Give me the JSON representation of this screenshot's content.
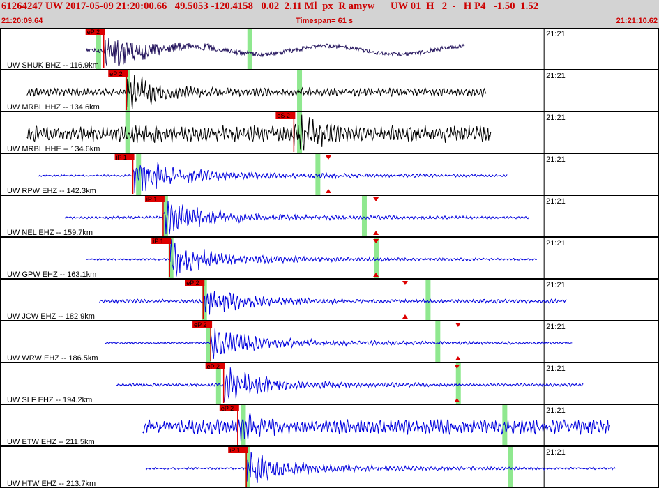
{
  "header": {
    "event_id": "61264247",
    "network": "UW",
    "datetime": "2017-05-09 21:20:00.66",
    "lat": "49.5053",
    "lon": "-120.4158",
    "depth": "0.02",
    "magnitude": "2.11 Ml",
    "magtype": "px",
    "review": "R",
    "author": "amyw",
    "version": "UW 01",
    "quality": "H",
    "num": "2",
    "dash": "-",
    "phase_code": "H P4",
    "v1": "-1.50",
    "v2": "1.52",
    "start_time": "21:20:09.64",
    "timespan_label": "Timespan=  61 s",
    "end_time": "21:21:10.62"
  },
  "colors": {
    "header_bg": "#d3d3d3",
    "header_text": "#cc0000",
    "pick_red": "#dd0000",
    "window_green": "#8fe88f",
    "trace_dark": "#20105a",
    "trace_black": "#000000",
    "trace_blue": "#0000dd"
  },
  "traces": [
    {
      "label": "UW SHUK BHZ -- 116.9km",
      "color": "#20105a",
      "pick": "eP 2",
      "minute_mark": "21:21",
      "start_t": 8.0,
      "pick_t": 9.6,
      "end_t": 43.0,
      "green_t": [
        8.9,
        22.9
      ],
      "extra_marks": [],
      "amp": 0.9,
      "noise": 0.12,
      "lowfreq": true
    },
    {
      "label": "UW MRBL HHZ -- 134.6km",
      "color": "#000000",
      "pick": "eP 2",
      "minute_mark": "21:21",
      "start_t": 2.5,
      "pick_t": 11.7,
      "end_t": 45.0,
      "green_t": [
        11.6,
        27.5
      ],
      "extra_marks": [],
      "amp": 0.9,
      "noise": 0.22,
      "lowfreq": false
    },
    {
      "label": "UW MRBL HHE -- 134.6km",
      "color": "#000000",
      "pick": "eS 2",
      "minute_mark": "21:21",
      "start_t": 2.5,
      "pick_t": 27.2,
      "end_t": 45.5,
      "green_t": [
        11.6,
        27.5
      ],
      "extra_marks": [],
      "amp": 1.0,
      "noise": 0.45,
      "lowfreq": false
    },
    {
      "label": "UW RPW EHZ -- 142.3km",
      "color": "#0000dd",
      "pick": "iP 1",
      "minute_mark": "21:21",
      "start_t": 3.5,
      "pick_t": 12.3,
      "end_t": 47.0,
      "green_t": [
        12.6,
        29.2
      ],
      "extra_marks": [
        30.4
      ],
      "amp": 1.0,
      "noise": 0.05,
      "lowfreq": false
    },
    {
      "label": "UW NEL EHZ -- 159.7km",
      "color": "#0000dd",
      "pick": "iP 1",
      "minute_mark": "21:21",
      "start_t": 6.0,
      "pick_t": 15.1,
      "end_t": 49.0,
      "green_t": [
        15.1,
        33.5
      ],
      "extra_marks": [
        34.8
      ],
      "amp": 0.9,
      "noise": 0.07,
      "lowfreq": false
    },
    {
      "label": "UW GPW EHZ -- 163.1km",
      "color": "#0000dd",
      "pick": "iP 1",
      "minute_mark": "21:21",
      "start_t": 8.0,
      "pick_t": 15.7,
      "end_t": 49.7,
      "green_t": [
        15.6,
        34.6
      ],
      "extra_marks": [
        34.8
      ],
      "amp": 0.9,
      "noise": 0.05,
      "lowfreq": false
    },
    {
      "label": "UW JCW EHZ -- 182.9km",
      "color": "#0000dd",
      "pick": "eP 2",
      "minute_mark": "21:21",
      "start_t": 9.2,
      "pick_t": 18.8,
      "end_t": 52.5,
      "green_t": [
        18.7,
        39.4
      ],
      "extra_marks": [
        37.5
      ],
      "amp": 0.8,
      "noise": 0.1,
      "lowfreq": false
    },
    {
      "label": "UW WRW EHZ -- 186.5km",
      "color": "#0000dd",
      "pick": "eP 2",
      "minute_mark": "21:21",
      "start_t": 9.7,
      "pick_t": 19.5,
      "end_t": 53.0,
      "green_t": [
        19.1,
        40.3
      ],
      "extra_marks": [
        42.4
      ],
      "amp": 0.85,
      "noise": 0.05,
      "lowfreq": false
    },
    {
      "label": "UW SLF EHZ -- 194.2km",
      "color": "#0000dd",
      "pick": "eP 2",
      "minute_mark": "21:21",
      "start_t": 10.8,
      "pick_t": 20.7,
      "end_t": 54.0,
      "green_t": [
        20.0,
        42.2
      ],
      "extra_marks": [
        42.3
      ],
      "amp": 0.85,
      "noise": 0.08,
      "lowfreq": false
    },
    {
      "label": "UW ETW EHZ -- 211.5km",
      "color": "#0000dd",
      "pick": "eP 2",
      "minute_mark": "21:21",
      "start_t": 13.2,
      "pick_t": 22.0,
      "end_t": 56.5,
      "green_t": [
        22.3,
        46.5
      ],
      "extra_marks": [],
      "amp": 0.8,
      "noise": 0.4,
      "lowfreq": false
    },
    {
      "label": "UW HTW EHZ -- 213.7km",
      "color": "#0000dd",
      "pick": "iP 1",
      "minute_mark": "21:21",
      "start_t": 13.5,
      "pick_t": 22.8,
      "end_t": 57.0,
      "green_t": [
        22.7,
        47.0
      ],
      "extra_marks": [],
      "amp": 0.85,
      "noise": 0.06,
      "lowfreq": false
    }
  ]
}
